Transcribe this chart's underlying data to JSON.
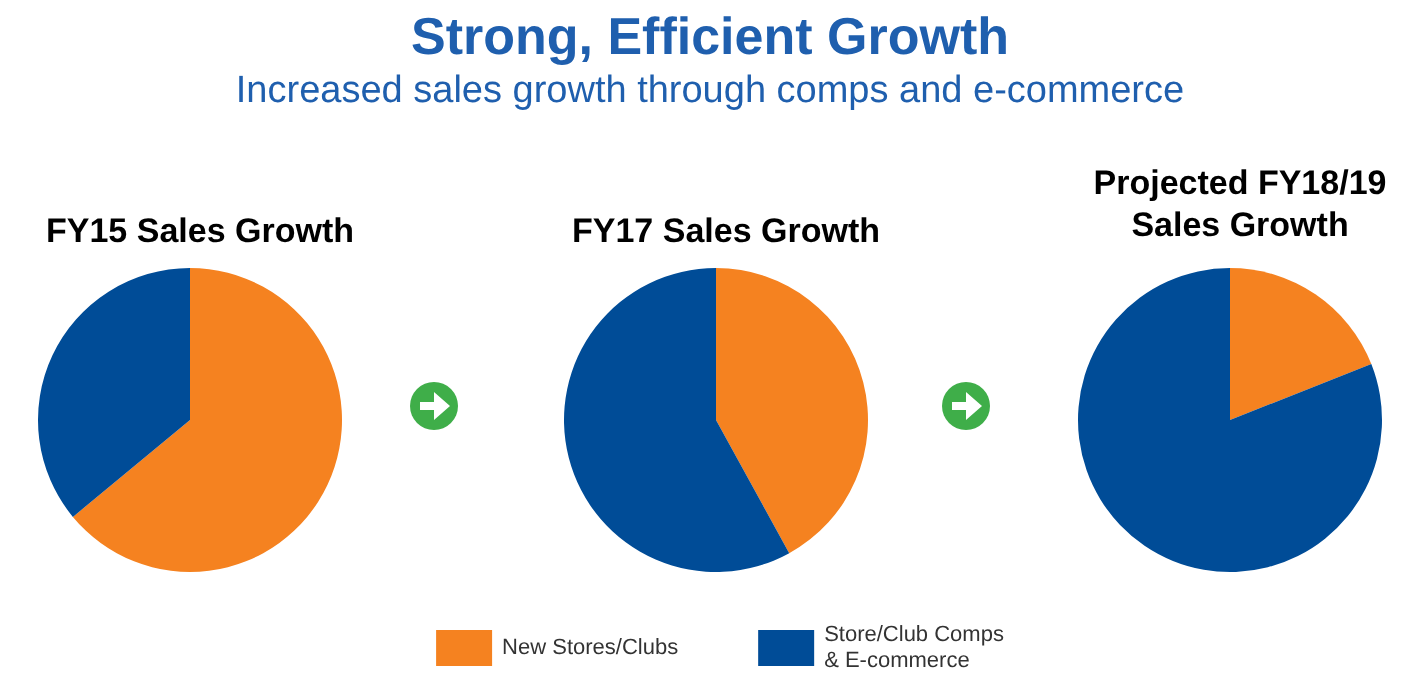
{
  "chart_data": [
    {
      "type": "other",
      "title": "Strong, Efficient Growth",
      "subtitle": "Increased sales growth through comps and e-commerce"
    },
    {
      "type": "pie",
      "title": "FY15 Sales Growth",
      "categories": [
        null,
        null
      ],
      "values": [
        64,
        36
      ],
      "colors": [
        "#f58220",
        "#004c97"
      ],
      "legend": false
    },
    {
      "type": "pie",
      "title": "FY17 Sales Growth",
      "categories": [
        "New Stores/Clubs",
        "Store/Club Comps\n& E-commerce"
      ],
      "values": [
        42,
        58
      ],
      "colors": [
        "#f58220",
        "#004c97"
      ],
      "legend": "bottom"
    },
    {
      "type": "pie",
      "title": "Projected FY18/19\nSales Growth",
      "categories": [
        null,
        null
      ],
      "values": [
        19,
        81
      ],
      "colors": [
        "#f58220",
        "#004c97"
      ],
      "legend": false
    }
  ]
}
